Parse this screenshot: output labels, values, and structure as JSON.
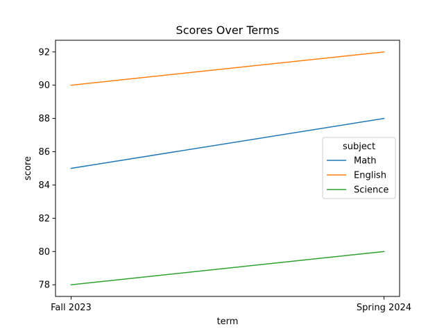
{
  "chart_data": {
    "type": "line",
    "title": "Scores Over Terms",
    "xlabel": "term",
    "ylabel": "score",
    "categories": [
      "Fall 2023",
      "Spring 2024"
    ],
    "ylim": [
      77.3,
      92.7
    ],
    "yticks": [
      78,
      80,
      82,
      84,
      86,
      88,
      90,
      92
    ],
    "grid": false,
    "legend": {
      "title": "subject",
      "placement": "center-right"
    },
    "series": [
      {
        "name": "Math",
        "values": [
          85,
          88
        ],
        "color": "#1f77b4"
      },
      {
        "name": "English",
        "values": [
          90,
          92
        ],
        "color": "#ff7f0e"
      },
      {
        "name": "Science",
        "values": [
          78,
          80
        ],
        "color": "#2ca02c"
      }
    ]
  }
}
